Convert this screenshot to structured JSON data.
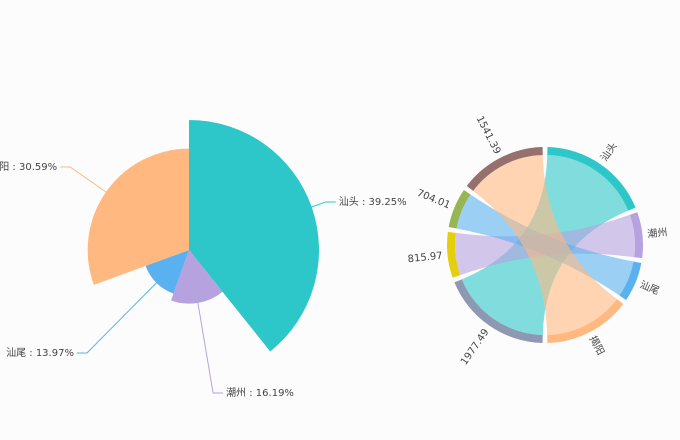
{
  "chart_data": [
    {
      "type": "rose-pie",
      "categories": [
        "汕头",
        "潮州",
        "汕尾",
        "揭阳"
      ],
      "values": [
        39.25,
        16.19,
        13.97,
        30.59
      ],
      "value_labels": [
        "39.25%",
        "16.19%",
        "13.97%",
        "30.59%"
      ],
      "label_separator": " : ",
      "colors": [
        "#2ec7c9",
        "#b6a2de",
        "#5ab1ef",
        "#ffb980"
      ]
    },
    {
      "type": "chord",
      "categories": [
        "汕头",
        "潮州",
        "汕尾",
        "揭阳"
      ],
      "values": [
        1977.49,
        815.97,
        704.01,
        1541.39
      ],
      "colors": [
        "#2ec7c9",
        "#b6a2de",
        "#5ab1ef",
        "#ffb980"
      ],
      "value_colors": [
        "#8d98b3",
        "#e5cf0d",
        "#97b552",
        "#95706d"
      ]
    }
  ]
}
